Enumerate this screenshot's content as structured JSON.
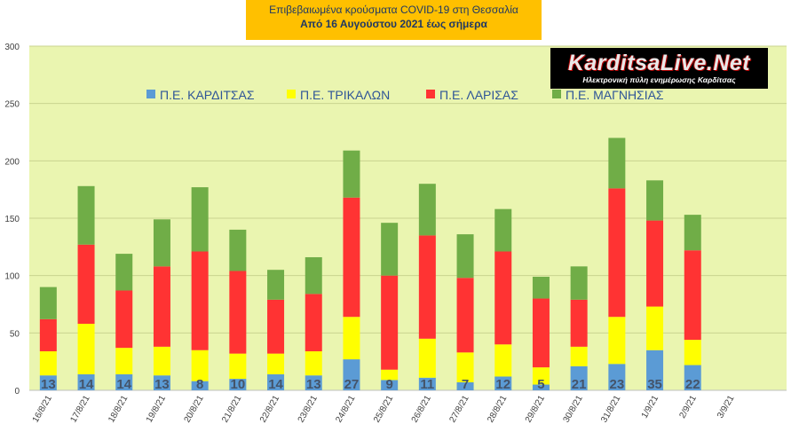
{
  "header": {
    "line1": "Επιβεβαιωμένα κρούσματα COVID-19 στη Θεσσαλία",
    "line2": "Από 16 Αυγούστου 2021 έως σήμερα"
  },
  "logo": {
    "name": "KarditsaLive.Net",
    "tagline": "Ηλεκτρονική πύλη ενημέρωσης Καρδίτσας"
  },
  "chart_data": {
    "type": "bar",
    "stacked": true,
    "categories": [
      "16/8/21",
      "17/8/21",
      "18/8/21",
      "19/8/21",
      "20/8/21",
      "21/8/21",
      "22/8/21",
      "23/8/21",
      "24/8/21",
      "25/8/21",
      "26/8/21",
      "27/8/21",
      "28/8/21",
      "29/8/21",
      "30/8/21",
      "31/8/21",
      "1/9/21",
      "2/9/21",
      "3/9/21"
    ],
    "series": [
      {
        "name": "Π.Ε. ΚΑΡΔΙΤΣΑΣ",
        "color": "#5b9bd5",
        "values": [
          13,
          14,
          14,
          13,
          8,
          10,
          14,
          13,
          27,
          9,
          11,
          7,
          12,
          5,
          21,
          23,
          35,
          22,
          null
        ],
        "show_labels": true
      },
      {
        "name": "Π.Ε. ΤΡΙΚΑΛΩΝ",
        "color": "#ffff00",
        "values": [
          21,
          44,
          23,
          25,
          27,
          22,
          18,
          21,
          37,
          9,
          34,
          26,
          28,
          15,
          17,
          41,
          38,
          22,
          null
        ]
      },
      {
        "name": "Π.Ε. ΛΑΡΙΣΑΣ",
        "color": "#ff3333",
        "values": [
          28,
          69,
          50,
          70,
          86,
          72,
          47,
          50,
          104,
          82,
          90,
          65,
          81,
          60,
          41,
          112,
          75,
          78,
          null
        ]
      },
      {
        "name": "Π.Ε. ΜΑΓΝΗΣΙΑΣ",
        "color": "#70ad47",
        "values": [
          28,
          51,
          32,
          41,
          56,
          36,
          26,
          32,
          41,
          46,
          45,
          38,
          37,
          19,
          29,
          44,
          35,
          31,
          null
        ]
      }
    ],
    "ylim": [
      0,
      300
    ],
    "yticks": [
      0,
      50,
      100,
      150,
      200,
      250,
      300
    ],
    "grid": true,
    "legend": "top",
    "plot_background": "#eaf5b0"
  }
}
